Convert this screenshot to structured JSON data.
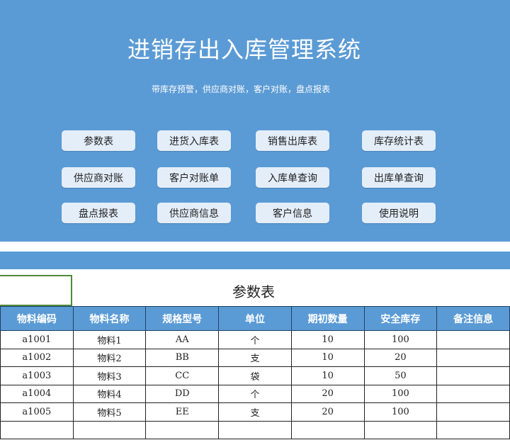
{
  "header": {
    "title": "进销存出入库管理系统",
    "subtitle": "带库存预警，供应商对账，客户对账，盘点报表"
  },
  "buttons": [
    [
      "参数表",
      "进货入库表",
      "销售出库表",
      "库存统计表"
    ],
    [
      "供应商对账",
      "客户对账单",
      "入库单查询",
      "出库单查询"
    ],
    [
      "盘点报表",
      "供应商信息",
      "客户信息",
      "使用说明"
    ]
  ],
  "sheet": {
    "title": "参数表",
    "columns": [
      "物料编码",
      "物料名称",
      "规格型号",
      "单位",
      "期初数量",
      "安全库存",
      "备注信息"
    ],
    "rows": [
      [
        "a1001",
        "物料1",
        "AA",
        "个",
        "10",
        "100",
        ""
      ],
      [
        "a1002",
        "物料2",
        "BB",
        "支",
        "10",
        "20",
        ""
      ],
      [
        "a1003",
        "物料3",
        "CC",
        "袋",
        "10",
        "50",
        ""
      ],
      [
        "a1004",
        "物料4",
        "DD",
        "个",
        "20",
        "100",
        ""
      ],
      [
        "a1005",
        "物料5",
        "EE",
        "支",
        "20",
        "100",
        ""
      ],
      [
        "",
        "",
        "",
        "",
        "",
        "",
        ""
      ]
    ]
  },
  "colors": {
    "accent": "#5b9bd5",
    "button": "#e4eef9"
  }
}
